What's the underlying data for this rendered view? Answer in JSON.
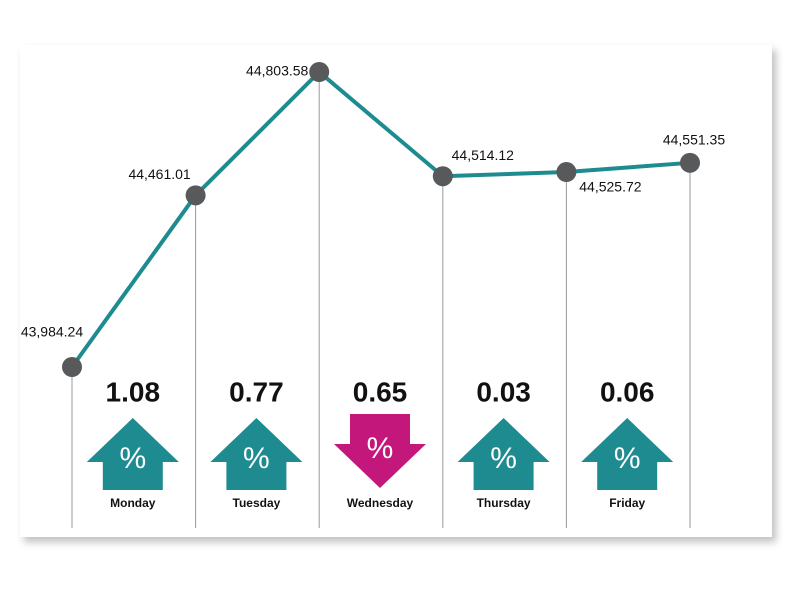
{
  "chart_data": {
    "type": "line",
    "categories": [
      null,
      null,
      null,
      null,
      null,
      null
    ],
    "values": [
      43984.24,
      44461.01,
      44803.58,
      44514.12,
      44525.72,
      44551.35
    ],
    "value_labels": [
      "43,984.24",
      "44,461.01",
      "44,803.58",
      "44,514.12",
      "44,525.72",
      "44,551.35"
    ],
    "color": "#1e8b91",
    "marker_color": "#58595b",
    "change_symbol": "%",
    "changes": [
      {
        "day": "Monday",
        "value": 1.08,
        "direction": "up"
      },
      {
        "day": "Tuesday",
        "value": 0.77,
        "direction": "up"
      },
      {
        "day": "Wednesday",
        "value": 0.65,
        "direction": "down"
      },
      {
        "day": "Thursday",
        "value": 0.03,
        "direction": "up"
      },
      {
        "day": "Friday",
        "value": 0.06,
        "direction": "up"
      }
    ],
    "up_color": "#1e8b91",
    "down_color": "#c4177c"
  }
}
